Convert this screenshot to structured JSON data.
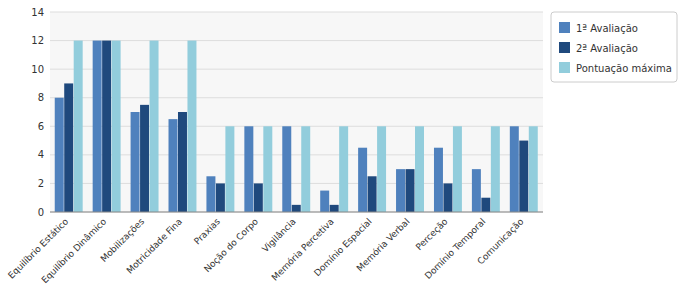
{
  "chart_data": {
    "type": "bar",
    "categories": [
      "Equilíbrio Estático",
      "Equilíbrio Dinâmico",
      "Mobilizações",
      "Motricidade Fina",
      "Praxias",
      "Noção do Corpo",
      "Vigilância",
      "Memória Percetiva",
      "Domínio Espacial",
      "Memória Verbal",
      "Perceção",
      "Domínio Temporal",
      "Comunicação"
    ],
    "series": [
      {
        "name": "1ª Avaliação",
        "color": "#4F81BD",
        "values": [
          8,
          12,
          7,
          6.5,
          2.5,
          6,
          6,
          1.5,
          4.5,
          3,
          4.5,
          3,
          6
        ]
      },
      {
        "name": "2ª Avaliação",
        "color": "#1F497D",
        "values": [
          9,
          12,
          7.5,
          7,
          2,
          2,
          0.5,
          0.5,
          2.5,
          3,
          2,
          1,
          5
        ]
      },
      {
        "name": "Pontuação máxima",
        "color": "#92CDDC",
        "values": [
          12,
          12,
          12,
          12,
          6,
          6,
          6,
          6,
          6,
          6,
          6,
          6,
          6
        ]
      }
    ],
    "ylim": [
      0,
      14
    ],
    "yticks": [
      0,
      2,
      4,
      6,
      8,
      10,
      12,
      14
    ],
    "grid": true,
    "legend": "right"
  }
}
